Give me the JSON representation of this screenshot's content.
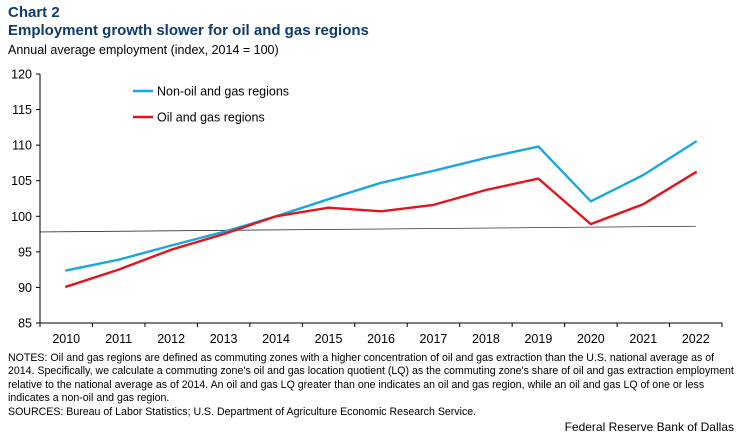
{
  "header": {
    "chart_number": "Chart 2",
    "title": "Employment growth slower for oil and gas regions",
    "subtitle": "Annual average employment (index, 2014 = 100)"
  },
  "chart_data": {
    "type": "line",
    "x": [
      "2010",
      "2011",
      "2012",
      "2013",
      "2014",
      "2015",
      "2016",
      "2017",
      "2018",
      "2019",
      "2020",
      "2021",
      "2022"
    ],
    "ylim": [
      85,
      120
    ],
    "yticks": [
      85,
      90,
      95,
      100,
      105,
      110,
      115,
      120
    ],
    "series": [
      {
        "name": "Non-oil and gas regions",
        "color": "#1aa7de",
        "values": [
          92.4,
          93.9,
          95.9,
          97.8,
          100.0,
          102.4,
          104.7,
          106.4,
          108.2,
          109.8,
          102.1,
          105.8,
          110.5
        ]
      },
      {
        "name": "Oil and gas regions",
        "color": "#e3141c",
        "values": [
          90.1,
          92.5,
          95.3,
          97.5,
          100.0,
          101.2,
          100.7,
          101.6,
          103.7,
          105.3,
          98.9,
          101.7,
          106.2
        ]
      }
    ],
    "trend_line": {
      "color": "#333333",
      "from": [
        "2010",
        97.8
      ],
      "to": [
        "2022",
        98.6
      ]
    },
    "legend_position": "top-left"
  },
  "footer": {
    "notes": "NOTES: Oil and gas regions are defined as commuting zones with a higher concentration of oil and gas extraction than the U.S. national average as of 2014. Specifically, we calculate a commuting zone's oil and gas location quotient (LQ) as the commuting zone's share of oil and gas extraction employment relative to the national average as of 2014. An oil and gas LQ greater than one indicates an oil and gas region, while an oil and gas LQ of one or less indicates a non-oil and gas region.",
    "sources": "SOURCES: Bureau of Labor Statistics; U.S. Department of Agriculture Economic Research Service.",
    "credit": "Federal Reserve Bank of Dallas"
  }
}
